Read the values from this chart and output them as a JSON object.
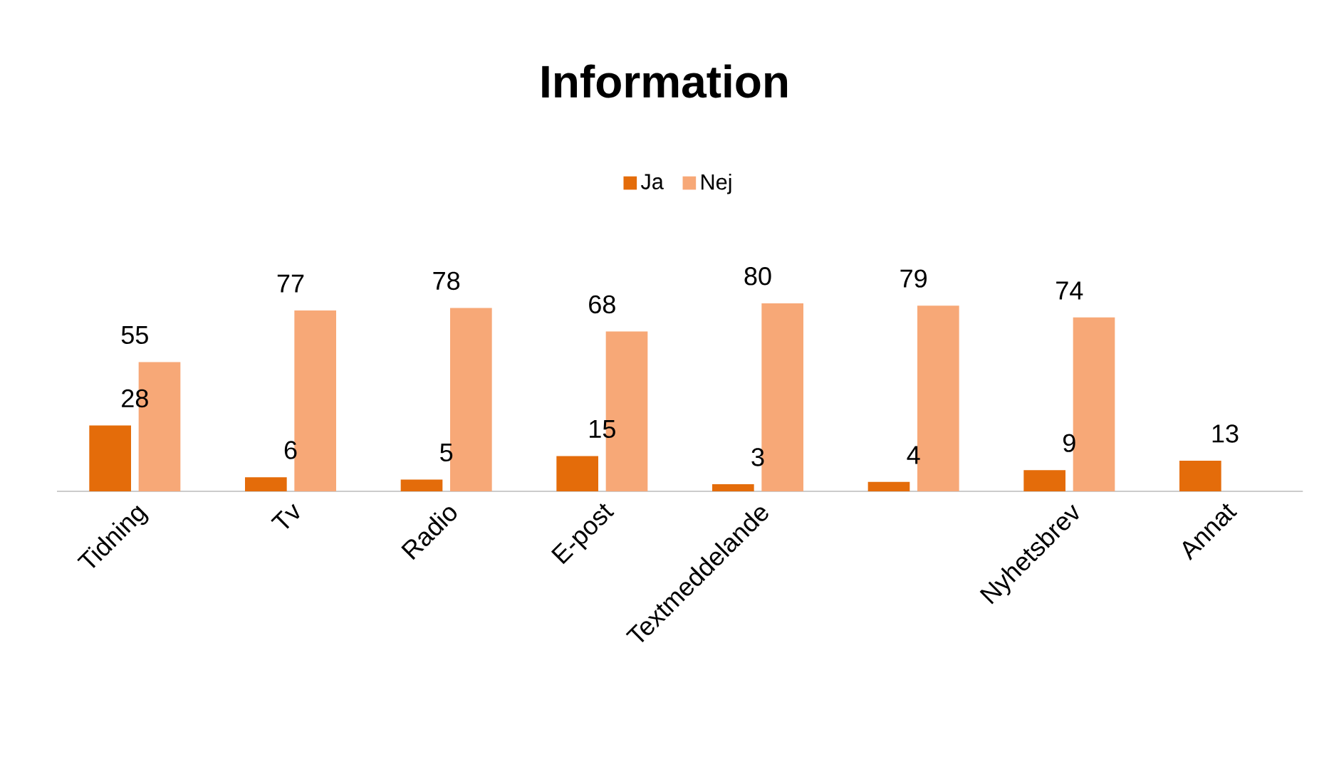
{
  "chart_data": {
    "type": "bar",
    "title": "Information",
    "categories": [
      "Tidning",
      "Tv",
      "Radio",
      "E-post",
      "Textmeddelande",
      null,
      "Nyhetsbrev",
      "Annat"
    ],
    "series": [
      {
        "name": "Ja",
        "color": "#e46c0a",
        "values": [
          28,
          6,
          5,
          15,
          3,
          4,
          9,
          13
        ]
      },
      {
        "name": "Nej",
        "color": "#f7a877",
        "values": [
          55,
          77,
          78,
          68,
          80,
          79,
          74,
          null
        ]
      }
    ],
    "data_labels": true,
    "legend": "top"
  }
}
